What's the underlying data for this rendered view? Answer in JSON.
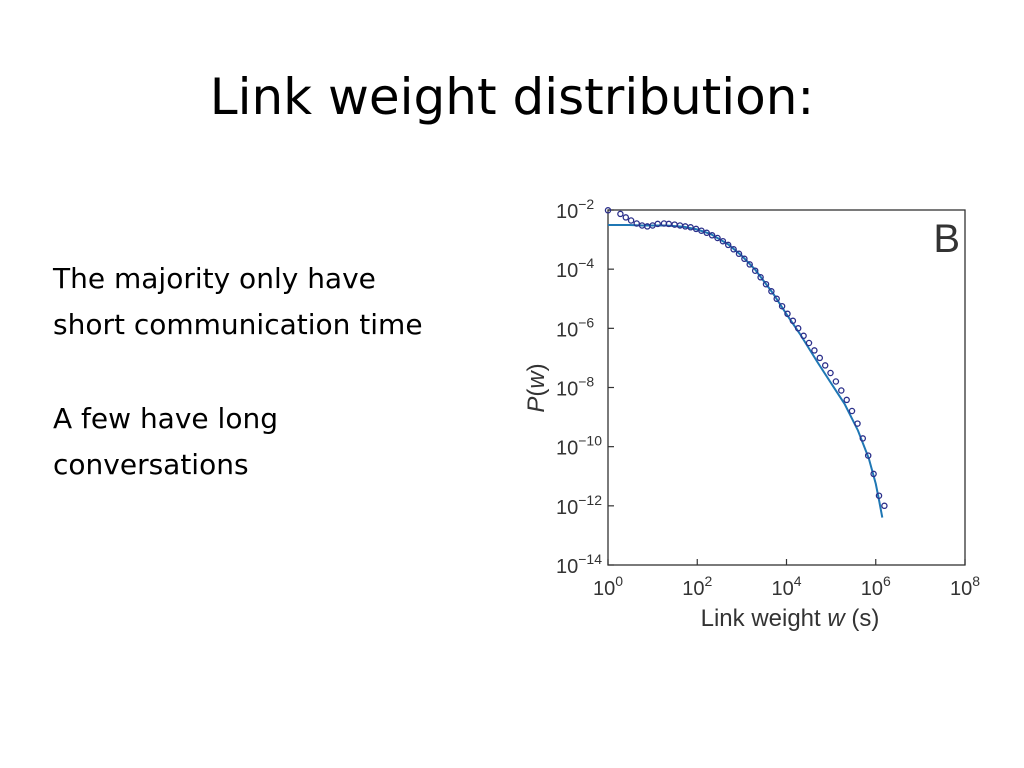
{
  "slide": {
    "title": "Link weight distribution:",
    "paragraphs": [
      {
        "lines": [
          "The majority only have",
          "short communication time"
        ]
      },
      {
        "lines": [
          "A few have long",
          "conversations"
        ]
      }
    ]
  },
  "chart_data": {
    "type": "scatter",
    "panel_label": "B",
    "xlabel_parts": [
      "Link weight ",
      "w",
      " (s)"
    ],
    "ylabel_parts": [
      "P",
      "(",
      "w",
      ")"
    ],
    "x_scale": "log",
    "y_scale": "log",
    "xlim": [
      1,
      100000000
    ],
    "ylim": [
      1e-14,
      0.01
    ],
    "x_ticks": [
      {
        "base": "10",
        "exp": "0",
        "value": 1
      },
      {
        "base": "10",
        "exp": "2",
        "value": 100
      },
      {
        "base": "10",
        "exp": "4",
        "value": 10000
      },
      {
        "base": "10",
        "exp": "6",
        "value": 1000000
      },
      {
        "base": "10",
        "exp": "8",
        "value": 100000000
      }
    ],
    "y_ticks": [
      {
        "base": "10",
        "exp": "−2",
        "value": 0.01
      },
      {
        "base": "10",
        "exp": "−4",
        "value": 0.0001
      },
      {
        "base": "10",
        "exp": "−6",
        "value": 1e-06
      },
      {
        "base": "10",
        "exp": "−8",
        "value": 1e-08
      },
      {
        "base": "10",
        "exp": "−10",
        "value": 1e-10
      },
      {
        "base": "10",
        "exp": "−12",
        "value": 1e-12
      },
      {
        "base": "10",
        "exp": "−14",
        "value": 1e-14
      }
    ],
    "grid": false,
    "series": [
      {
        "kind": "scatter",
        "color": "#2b2f8a",
        "points": [
          [
            1.0,
            0.0098
          ],
          [
            1.9,
            0.0074
          ],
          [
            2.5,
            0.0056
          ],
          [
            3.3,
            0.0044
          ],
          [
            4.4,
            0.0035
          ],
          [
            5.8,
            0.003
          ],
          [
            7.6,
            0.0028
          ],
          [
            10,
            0.003
          ],
          [
            13,
            0.0034
          ],
          [
            18,
            0.0035
          ],
          [
            23,
            0.0034
          ],
          [
            31,
            0.0032
          ],
          [
            41,
            0.003
          ],
          [
            54,
            0.0028
          ],
          [
            71,
            0.0026
          ],
          [
            94,
            0.0023
          ],
          [
            124,
            0.002
          ],
          [
            163,
            0.0017
          ],
          [
            215,
            0.0014
          ],
          [
            284,
            0.00113
          ],
          [
            375,
            0.00088
          ],
          [
            495,
            0.00066
          ],
          [
            653,
            0.00047
          ],
          [
            862,
            0.00033
          ],
          [
            1138,
            0.000224
          ],
          [
            1500,
            0.000145
          ],
          [
            1990,
            8.9e-05
          ],
          [
            2630,
            5.3e-05
          ],
          [
            3470,
            3.1e-05
          ],
          [
            4580,
            1.78e-05
          ],
          [
            6040,
            1e-05
          ],
          [
            7970,
            5.6e-06
          ],
          [
            10520,
            3.1e-06
          ],
          [
            13900,
            1.8e-06
          ],
          [
            18300,
            1e-06
          ],
          [
            24200,
            5.6e-07
          ],
          [
            32000,
            3.2e-07
          ],
          [
            42200,
            1.8e-07
          ],
          [
            55700,
            1e-07
          ],
          [
            73500,
            5.6e-08
          ],
          [
            97000,
            3.1e-08
          ],
          [
            128000,
            1.6e-08
          ],
          [
            169000,
            7.9e-09
          ],
          [
            223000,
            3.8e-09
          ],
          [
            294000,
            1.6e-09
          ],
          [
            389000,
            6e-10
          ],
          [
            513000,
            1.9e-10
          ],
          [
            677000,
            5e-11
          ],
          [
            894000,
            1.2e-11
          ],
          [
            1180000,
            2.2e-12
          ],
          [
            1560000,
            1e-12
          ]
        ]
      },
      {
        "kind": "line",
        "color": "#1f77b4",
        "points": [
          [
            1,
            0.0031
          ],
          [
            3,
            0.0031
          ],
          [
            6,
            0.003
          ],
          [
            10,
            0.003
          ],
          [
            20,
            0.003
          ],
          [
            50,
            0.0027
          ],
          [
            100,
            0.0022
          ],
          [
            200,
            0.00155
          ],
          [
            500,
            0.00068
          ],
          [
            1000,
            0.00028
          ],
          [
            2000,
            9.5e-05
          ],
          [
            5000,
            1.5e-05
          ],
          [
            10000,
            3e-06
          ],
          [
            20000,
            6.5e-07
          ],
          [
            50000,
            7e-08
          ],
          [
            100000,
            1.4e-08
          ],
          [
            200000,
            2.8e-09
          ],
          [
            400000,
            3.5e-10
          ],
          [
            700000,
            4e-11
          ],
          [
            1000000,
            5.5e-12
          ],
          [
            1200000,
            1.4e-12
          ],
          [
            1400000,
            4e-13
          ]
        ]
      }
    ]
  }
}
